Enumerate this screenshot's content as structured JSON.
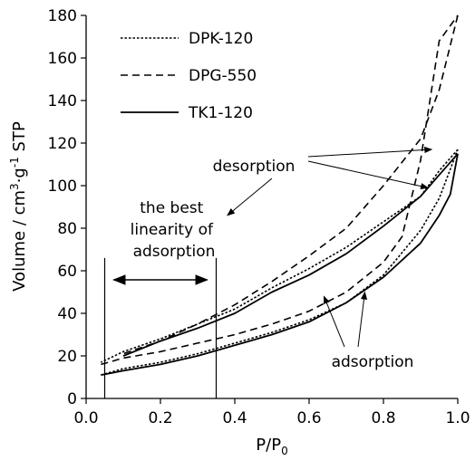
{
  "chart_data": {
    "type": "line",
    "xlabel": "P/P",
    "xlabel_sub": "0",
    "ylabel_parts": {
      "pre": "Volume / cm",
      "sup1": "3",
      "mid": "·g",
      "sup2": "-1",
      "post": " STP"
    },
    "xlim": [
      0,
      1
    ],
    "ylim": [
      0,
      180
    ],
    "x_ticks": [
      "0.0",
      "0.2",
      "0.4",
      "0.6",
      "0.8",
      "1.0"
    ],
    "y_ticks": [
      "0",
      "20",
      "40",
      "60",
      "80",
      "100",
      "120",
      "140",
      "160",
      "180"
    ],
    "grid": false,
    "legend_position": "top-left",
    "series": [
      {
        "name": "DPK-120",
        "style": "dotted",
        "adsorption": [
          [
            0.04,
            11
          ],
          [
            0.1,
            14
          ],
          [
            0.2,
            17
          ],
          [
            0.3,
            21
          ],
          [
            0.4,
            26
          ],
          [
            0.5,
            31
          ],
          [
            0.6,
            37
          ],
          [
            0.7,
            45
          ],
          [
            0.8,
            58
          ],
          [
            0.9,
            79
          ],
          [
            0.95,
            94
          ],
          [
            1.0,
            117
          ]
        ],
        "desorption": [
          [
            1.0,
            117
          ],
          [
            0.95,
            107
          ],
          [
            0.9,
            95
          ],
          [
            0.8,
            83
          ],
          [
            0.7,
            71
          ],
          [
            0.6,
            61
          ],
          [
            0.5,
            52
          ],
          [
            0.4,
            42
          ],
          [
            0.3,
            35
          ],
          [
            0.2,
            28
          ],
          [
            0.1,
            22
          ],
          [
            0.04,
            17
          ]
        ]
      },
      {
        "name": "DPG-550",
        "style": "dashed",
        "adsorption": [
          [
            0.04,
            16
          ],
          [
            0.1,
            19
          ],
          [
            0.2,
            22
          ],
          [
            0.3,
            26
          ],
          [
            0.4,
            30
          ],
          [
            0.5,
            35
          ],
          [
            0.6,
            41
          ],
          [
            0.7,
            50
          ],
          [
            0.8,
            64
          ],
          [
            0.85,
            76
          ],
          [
            0.9,
            112
          ],
          [
            0.95,
            168
          ],
          [
            1.0,
            180
          ]
        ],
        "desorption": [
          [
            1.0,
            180
          ],
          [
            0.95,
            145
          ],
          [
            0.9,
            122
          ],
          [
            0.8,
            100
          ],
          [
            0.7,
            80
          ],
          [
            0.6,
            67
          ],
          [
            0.5,
            55
          ],
          [
            0.4,
            44
          ],
          [
            0.3,
            35
          ],
          [
            0.2,
            27
          ],
          [
            0.1,
            21
          ]
        ]
      },
      {
        "name": "TK1-120",
        "style": "solid",
        "adsorption": [
          [
            0.04,
            11
          ],
          [
            0.1,
            13
          ],
          [
            0.2,
            16
          ],
          [
            0.3,
            20
          ],
          [
            0.4,
            25
          ],
          [
            0.5,
            30
          ],
          [
            0.6,
            36
          ],
          [
            0.7,
            45
          ],
          [
            0.8,
            57
          ],
          [
            0.9,
            73
          ],
          [
            0.95,
            86
          ],
          [
            0.98,
            96
          ],
          [
            1.0,
            115
          ]
        ],
        "desorption": [
          [
            1.0,
            115
          ],
          [
            0.95,
            105
          ],
          [
            0.9,
            95
          ],
          [
            0.8,
            81
          ],
          [
            0.7,
            68
          ],
          [
            0.6,
            58
          ],
          [
            0.5,
            50
          ],
          [
            0.4,
            40
          ],
          [
            0.3,
            33
          ],
          [
            0.2,
            27
          ],
          [
            0.1,
            20
          ]
        ]
      }
    ],
    "annotations": {
      "desorption": "desorption",
      "adsorption": "adsorption",
      "linearity_lines": [
        "the best",
        "linearity of",
        "adsorption"
      ],
      "linearity_range": [
        0.05,
        0.35
      ],
      "desorption_arrow_targets": [
        [
          0.38,
          86
        ],
        [
          0.93,
          117
        ],
        [
          0.92,
          99
        ]
      ],
      "adsorption_arrow_targets": [
        [
          0.64,
          48
        ],
        [
          0.75,
          50
        ]
      ]
    }
  }
}
